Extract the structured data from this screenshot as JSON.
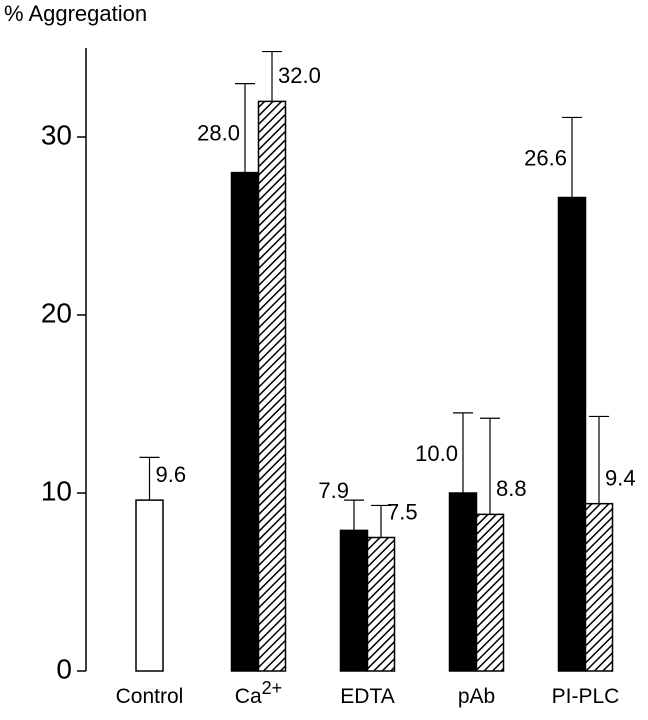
{
  "chart_data": {
    "type": "bar",
    "y_label": "% Aggregation",
    "categories": [
      {
        "label": "Control"
      },
      {
        "label": "Ca",
        "superscript": "2+"
      },
      {
        "label": "EDTA"
      },
      {
        "label": "pAb"
      },
      {
        "label": "PI-PLC"
      }
    ],
    "series": [
      {
        "color": "#ffffff",
        "pattern": "solid",
        "values": [
          9.6,
          null,
          null,
          null,
          null
        ],
        "errors": [
          2.4,
          null,
          null,
          null,
          null
        ],
        "value_labels": [
          "9.6",
          null,
          null,
          null,
          null
        ]
      },
      {
        "color": "#000000",
        "pattern": "solid",
        "values": [
          null,
          28.0,
          7.9,
          10.0,
          26.6
        ],
        "errors": [
          null,
          5.0,
          1.7,
          4.5,
          4.5
        ],
        "value_labels": [
          null,
          "28.0",
          "7.9",
          "10.0",
          "26.6"
        ]
      },
      {
        "color": "#000000",
        "pattern": "hatched",
        "values": [
          null,
          32.0,
          7.5,
          8.8,
          9.4
        ],
        "errors": [
          null,
          2.8,
          1.8,
          5.4,
          4.9
        ],
        "value_labels": [
          null,
          "32.0",
          "7.5",
          "8.8",
          "9.4"
        ]
      }
    ],
    "ylim": [
      0,
      35
    ],
    "yticks": [
      0,
      10,
      20,
      30
    ]
  }
}
